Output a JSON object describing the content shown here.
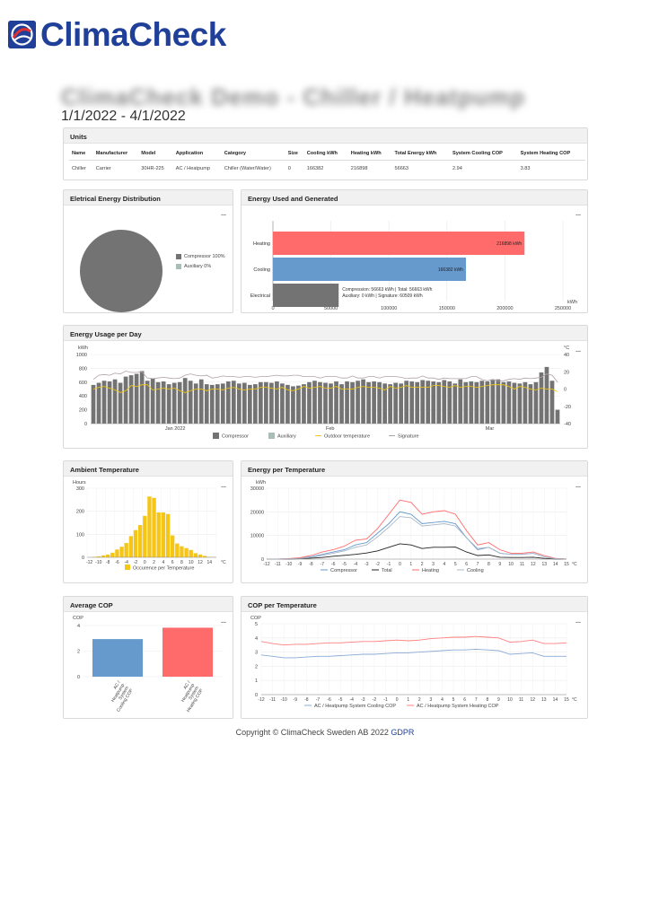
{
  "header": {
    "logo_text": "ClimaCheck",
    "page_title": "ClimaCheck Demo - Chiller / Heatpump",
    "date_range": "1/1/2022 - 4/1/2022"
  },
  "units": {
    "title": "Units",
    "columns": [
      "Name",
      "Manufacturer",
      "Model",
      "Application",
      "Category",
      "Size",
      "Cooling kWh",
      "Heating kWh",
      "Total Energy kWh",
      "System Cooling COP",
      "System Heating COP"
    ],
    "rows": [
      [
        "Chiller",
        "Carrier",
        "30HR-225",
        "AC / Heatpump",
        "Chiller (Water/Water)",
        "0",
        "166382",
        "216898",
        "56663",
        "2.94",
        "3.83"
      ]
    ]
  },
  "menu_icon": "...",
  "electrical_distribution": {
    "title": "Eletrical Energy Distribution",
    "legend": [
      {
        "label": "Compressor 100%",
        "color": "#737373"
      },
      {
        "label": "Auxiliary 0%",
        "color": "#a9bfb5"
      }
    ]
  },
  "energy_used": {
    "title": "Energy Used and Generated",
    "unit_label": "kWh",
    "tooltip_line1": "Compression: 56663 kWh | Total: 56663 kWh",
    "tooltip_line2": "Auxiliary: 0 kWh | Signature: 60509 kWh"
  },
  "energy_per_day": {
    "title": "Energy Usage per Day",
    "left_unit": "kWh",
    "right_unit": "°C",
    "legend": [
      {
        "label": "Compressor",
        "color": "#737373",
        "kind": "box"
      },
      {
        "label": "Auxiliary",
        "color": "#a9bfb5",
        "kind": "box"
      },
      {
        "label": "Outdoor temperature",
        "color": "#f2c90f",
        "kind": "line"
      },
      {
        "label": "Signature",
        "color": "#b0a0aa",
        "kind": "line"
      }
    ]
  },
  "ambient_temperature": {
    "title": "Ambient Temperature",
    "y_unit": "Hours",
    "x_unit": "°C",
    "legend": "Occurence per Temperature"
  },
  "energy_per_temperature": {
    "title": "Energy per Temperature",
    "y_unit": "kWh",
    "x_unit": "°C"
  },
  "average_cop": {
    "title": "Average COP",
    "y_unit": "COP"
  },
  "cop_per_temperature": {
    "title": "COP per Temperature",
    "y_unit": "COP",
    "x_unit": "°C"
  },
  "footer": {
    "copyright": "Copyright © ClimaCheck Sweden AB 2022",
    "gdpr": "GDPR"
  },
  "chart_data": [
    {
      "type": "pie",
      "title": "Eletrical Energy Distribution",
      "categories": [
        "Compressor 100%",
        "Auxiliary 0%"
      ],
      "values": [
        100,
        0
      ],
      "colors": [
        "#737373",
        "#a9bfb5"
      ]
    },
    {
      "type": "bar",
      "orientation": "horizontal",
      "title": "Energy Used and Generated",
      "categories": [
        "Heating",
        "Cooling",
        "Electrical"
      ],
      "values": [
        216898,
        166382,
        56663
      ],
      "data_labels": [
        "216898 kWh",
        "166382 kWh",
        ""
      ],
      "colors": [
        "#ff6b6b",
        "#6699cc",
        "#737373"
      ],
      "xlim": [
        0,
        250000
      ],
      "xticks": [
        "0",
        "50000",
        "100000",
        "150000",
        "200000",
        "250000"
      ],
      "xlabel": "kWh"
    },
    {
      "type": "bar",
      "title": "Energy Usage per Day",
      "ylim": [
        0,
        1000
      ],
      "yticks": [
        "0",
        "200",
        "400",
        "600",
        "800",
        "1000"
      ],
      "y2lim": [
        -40,
        40
      ],
      "y2ticks": [
        "-40",
        "-20",
        "0",
        "20",
        "40"
      ],
      "xticks": [
        "Jan 2022",
        "Feb",
        "Mar"
      ],
      "series": [
        {
          "name": "Compressor",
          "values": [
            560,
            590,
            620,
            610,
            640,
            590,
            680,
            700,
            720,
            760,
            620,
            650,
            600,
            610,
            570,
            590,
            600,
            660,
            620,
            580,
            640,
            570,
            560,
            570,
            580,
            610,
            620,
            580,
            590,
            560,
            570,
            600,
            600,
            590,
            610,
            580,
            560,
            540,
            550,
            570,
            600,
            620,
            600,
            590,
            580,
            610,
            570,
            610,
            600,
            620,
            640,
            600,
            610,
            600,
            580,
            570,
            590,
            580,
            620,
            610,
            600,
            630,
            620,
            610,
            600,
            630,
            610,
            580,
            640,
            600,
            610,
            600,
            620,
            610,
            630,
            640,
            600,
            610,
            590,
            580,
            600,
            570,
            600,
            740,
            820,
            620,
            200
          ]
        },
        {
          "name": "Outdoor temperature",
          "values": [
            0,
            2,
            3,
            1,
            -1,
            -4,
            -2,
            4,
            3,
            5,
            5,
            -1,
            0,
            1,
            0,
            1,
            -2,
            -4,
            -2,
            0,
            0,
            -2,
            0,
            0,
            -1,
            1,
            2,
            0,
            -1,
            0,
            0,
            2,
            2,
            1,
            0,
            2,
            -1,
            -2,
            0,
            3,
            1,
            2,
            3,
            1,
            1,
            3,
            0,
            0,
            0,
            2,
            3,
            2,
            2,
            1,
            -1,
            3,
            1,
            2,
            4,
            2,
            2,
            2,
            2,
            4,
            4,
            3,
            2,
            4,
            2,
            3,
            3,
            2,
            3,
            4,
            5,
            5,
            5,
            3,
            0,
            3,
            2,
            0,
            -1,
            1,
            0,
            0,
            -3
          ]
        },
        {
          "name": "Signature",
          "values": [
            640,
            700,
            710,
            700,
            730,
            720,
            760,
            740,
            740,
            750,
            660,
            650,
            660,
            670,
            660,
            650,
            660,
            700,
            720,
            700,
            690,
            700,
            660,
            670,
            690,
            680,
            680,
            670,
            680,
            680,
            670,
            680,
            680,
            690,
            700,
            690,
            690,
            700,
            700,
            680,
            680,
            680,
            660,
            680,
            680,
            680,
            660,
            660,
            690,
            660,
            660,
            680,
            680,
            660,
            680,
            680,
            680,
            670,
            650,
            660,
            660,
            690,
            660,
            660,
            640,
            660,
            650,
            650,
            650,
            650,
            680,
            680,
            640,
            620,
            640,
            620,
            620,
            640,
            650,
            640,
            660,
            650,
            660,
            670,
            720,
            700,
            600
          ]
        }
      ]
    },
    {
      "type": "bar",
      "title": "Ambient Temperature",
      "categories": [
        "-12",
        "-11",
        "-10",
        "-9",
        "-8",
        "-7",
        "-6",
        "-5",
        "-4",
        "-3",
        "-2",
        "-1",
        "0",
        "1",
        "2",
        "3",
        "4",
        "5",
        "6",
        "7",
        "8",
        "9",
        "10",
        "11",
        "12",
        "13",
        "14",
        "15"
      ],
      "xticks": [
        "-12",
        "-10",
        "-8",
        "-6",
        "-4",
        "-2",
        "0",
        "2",
        "4",
        "6",
        "8",
        "10",
        "12",
        "14"
      ],
      "values": [
        0,
        2,
        4,
        8,
        12,
        20,
        34,
        46,
        62,
        92,
        118,
        140,
        180,
        264,
        258,
        195,
        195,
        188,
        95,
        60,
        48,
        40,
        32,
        18,
        12,
        6,
        2,
        1
      ],
      "ylim": [
        0,
        300
      ],
      "yticks": [
        "0",
        "100",
        "200",
        "300"
      ],
      "series_name": "Occurence per Temperature",
      "color": "#f5c518"
    },
    {
      "type": "line",
      "title": "Energy per Temperature",
      "x": [
        -12,
        -11,
        -10,
        -9,
        -8,
        -7,
        -6,
        -5,
        -4,
        -3,
        -2,
        -1,
        0,
        1,
        2,
        3,
        4,
        5,
        6,
        7,
        8,
        9,
        10,
        11,
        12,
        13,
        14,
        15
      ],
      "xticks": [
        "-12",
        "-11",
        "-10",
        "-9",
        "-8",
        "-7",
        "-6",
        "-5",
        "-4",
        "-3",
        "-2",
        "-1",
        "0",
        "1",
        "2",
        "3",
        "4",
        "5",
        "6",
        "7",
        "8",
        "9",
        "10",
        "11",
        "12",
        "13",
        "14",
        "15"
      ],
      "ylim": [
        0,
        30000
      ],
      "yticks": [
        "0",
        "10000",
        "20000",
        "30000"
      ],
      "series": [
        {
          "name": "Compressor",
          "color": "#6699cc",
          "values": [
            0,
            0,
            100,
            500,
            1000,
            2000,
            3000,
            4000,
            6000,
            7000,
            11000,
            15000,
            20000,
            19000,
            15000,
            15500,
            16000,
            15000,
            9000,
            4000,
            5000,
            2500,
            2000,
            2000,
            2500,
            1000,
            200,
            0
          ]
        },
        {
          "name": "Total",
          "color": "#222222",
          "values": [
            0,
            0,
            50,
            200,
            400,
            700,
            1200,
            1600,
            2000,
            2600,
            3500,
            5000,
            6500,
            6000,
            4500,
            5000,
            5000,
            5100,
            3000,
            1500,
            1800,
            800,
            700,
            700,
            800,
            300,
            50,
            0
          ]
        },
        {
          "name": "Heating",
          "color": "#ff6b6b",
          "values": [
            0,
            0,
            200,
            600,
            1500,
            3000,
            4000,
            5500,
            8000,
            8500,
            13000,
            19000,
            25000,
            24000,
            19000,
            20000,
            20500,
            19000,
            12000,
            6000,
            7000,
            4000,
            2500,
            2500,
            3000,
            1500,
            300,
            0
          ]
        },
        {
          "name": "Cooling",
          "color": "#aab8c8",
          "values": [
            0,
            0,
            100,
            300,
            800,
            1500,
            2500,
            3500,
            5000,
            6000,
            9500,
            13500,
            18000,
            17500,
            14000,
            14500,
            15000,
            14000,
            9000,
            4500,
            5000,
            2500,
            2000,
            2000,
            2500,
            1000,
            200,
            0
          ]
        }
      ]
    },
    {
      "type": "bar",
      "title": "Average COP",
      "categories": [
        "AC / Heatpump System Cooling COP",
        "AC / Heatpump System Heating COP"
      ],
      "category_lines": [
        [
          "AC /",
          "Heatpump",
          "System",
          "Cooling COP"
        ],
        [
          "AC /",
          "Heatpump",
          "System",
          "Heating COP"
        ]
      ],
      "values": [
        2.94,
        3.83
      ],
      "colors": [
        "#6699cc",
        "#ff6b6b"
      ],
      "ylim": [
        0,
        4
      ],
      "yticks": [
        "0",
        "2",
        "4"
      ]
    },
    {
      "type": "line",
      "title": "COP per Temperature",
      "x": [
        -12,
        -11,
        -10,
        -9,
        -8,
        -7,
        -6,
        -5,
        -4,
        -3,
        -2,
        -1,
        0,
        1,
        2,
        3,
        4,
        5,
        6,
        7,
        8,
        9,
        10,
        11,
        12,
        13,
        14,
        15
      ],
      "xticks": [
        "-12",
        "-11",
        "-10",
        "-9",
        "-8",
        "-7",
        "-6",
        "-5",
        "-4",
        "-3",
        "-2",
        "-1",
        "0",
        "1",
        "2",
        "3",
        "4",
        "5",
        "6",
        "7",
        "8",
        "9",
        "10",
        "11",
        "12",
        "13",
        "14",
        "15"
      ],
      "ylim": [
        0,
        5
      ],
      "yticks": [
        "0",
        "1",
        "2",
        "3",
        "4",
        "5"
      ],
      "series": [
        {
          "name": "AC / Heatpump System Cooling COP",
          "color": "#8aaad6",
          "values": [
            2.8,
            2.7,
            2.6,
            2.6,
            2.65,
            2.7,
            2.7,
            2.75,
            2.8,
            2.85,
            2.85,
            2.9,
            2.95,
            2.95,
            3.0,
            3.05,
            3.1,
            3.15,
            3.15,
            3.2,
            3.15,
            3.1,
            2.85,
            2.9,
            2.95,
            2.7,
            2.7,
            2.7
          ]
        },
        {
          "name": "AC / Heatpump System Heating COP",
          "color": "#ff8080",
          "values": [
            3.75,
            3.6,
            3.5,
            3.55,
            3.55,
            3.6,
            3.65,
            3.65,
            3.7,
            3.75,
            3.75,
            3.8,
            3.85,
            3.8,
            3.85,
            3.95,
            4.0,
            4.05,
            4.05,
            4.1,
            4.05,
            4.0,
            3.7,
            3.75,
            3.85,
            3.6,
            3.6,
            3.65
          ]
        }
      ]
    }
  ]
}
